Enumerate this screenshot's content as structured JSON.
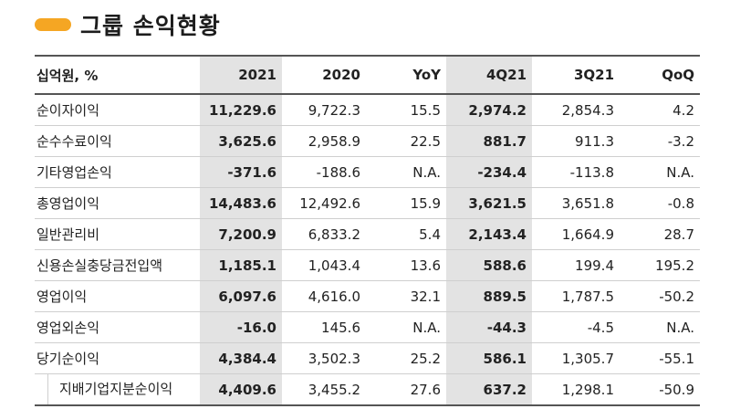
{
  "title": "그룹 손익현황",
  "table": {
    "headers": [
      "십억원, %",
      "2021",
      "2020",
      "YoY",
      "4Q21",
      "3Q21",
      "QoQ"
    ],
    "rows": [
      {
        "label": "순이자이익",
        "v": [
          "11,229.6",
          "9,722.3",
          "15.5",
          "2,974.2",
          "2,854.3",
          "4.2"
        ]
      },
      {
        "label": "순수수료이익",
        "v": [
          "3,625.6",
          "2,958.9",
          "22.5",
          "881.7",
          "911.3",
          "-3.2"
        ]
      },
      {
        "label": "기타영업손익",
        "v": [
          "-371.6",
          "-188.6",
          "N.A.",
          "-234.4",
          "-113.8",
          "N.A."
        ]
      },
      {
        "label": "총영업이익",
        "v": [
          "14,483.6",
          "12,492.6",
          "15.9",
          "3,621.5",
          "3,651.8",
          "-0.8"
        ]
      },
      {
        "label": "일반관리비",
        "v": [
          "7,200.9",
          "6,833.2",
          "5.4",
          "2,143.4",
          "1,664.9",
          "28.7"
        ]
      },
      {
        "label": "신용손실충당금전입액",
        "v": [
          "1,185.1",
          "1,043.4",
          "13.6",
          "588.6",
          "199.4",
          "195.2"
        ]
      },
      {
        "label": "영업이익",
        "v": [
          "6,097.6",
          "4,616.0",
          "32.1",
          "889.5",
          "1,787.5",
          "-50.2"
        ]
      },
      {
        "label": "영업외손익",
        "v": [
          "-16.0",
          "145.6",
          "N.A.",
          "-44.3",
          "-4.5",
          "N.A."
        ]
      },
      {
        "label": "당기순이익",
        "v": [
          "4,384.4",
          "3,502.3",
          "25.2",
          "586.1",
          "1,305.7",
          "-55.1"
        ]
      },
      {
        "label": "지배기업지분순이익",
        "v": [
          "4,409.6",
          "3,455.2",
          "27.6",
          "637.2",
          "1,298.1",
          "-50.9"
        ]
      }
    ]
  },
  "colors": {
    "accent": "#f5a623",
    "highlight": "#e3e3e3"
  }
}
